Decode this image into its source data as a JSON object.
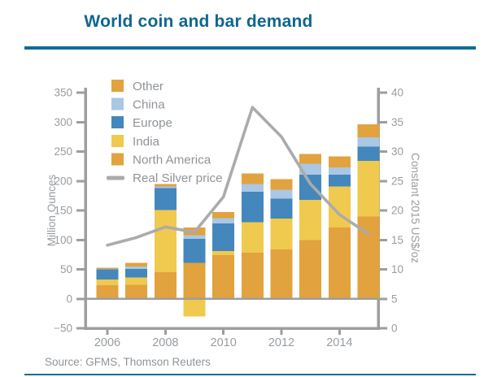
{
  "page": {
    "title": "World coin and bar demand",
    "source": "Source: GFMS, Thomson Reuters"
  },
  "theme": {
    "accent": "#0f6d96",
    "title_color": "#0f6690",
    "axis_gray": "#9c9ea0",
    "tick_label_gray": "#989da1",
    "legend_text_gray": "#8f9499",
    "line_gray": "#ababab",
    "background": "#ffffff"
  },
  "chart_data": {
    "type": "bar",
    "subtype": "stacked-bars-with-price-line",
    "title": "World coin and bar demand",
    "categories": [
      "2006",
      "2007",
      "2008",
      "2009",
      "2010",
      "2011",
      "2012",
      "2013",
      "2014",
      "2015"
    ],
    "stack_order_bottom_to_top": [
      "North America",
      "India",
      "Europe",
      "China",
      "Other"
    ],
    "series": [
      {
        "name": "Other",
        "color": "#e2a23d",
        "values": [
          2,
          6,
          4,
          13,
          10,
          18,
          18,
          17,
          19,
          22
        ]
      },
      {
        "name": "China",
        "color": "#aac7e4",
        "values": [
          1,
          4,
          3,
          6,
          9,
          13,
          15,
          18,
          12,
          16
        ]
      },
      {
        "name": "Europe",
        "color": "#4387bd",
        "values": [
          17,
          15,
          37,
          41,
          47,
          52,
          34,
          43,
          20,
          24
        ]
      },
      {
        "name": "India",
        "color": "#f0c94f",
        "values": [
          10,
          12,
          106,
          -30,
          7,
          52,
          52,
          68,
          70,
          94
        ]
      },
      {
        "name": "North America",
        "color": "#e2a23d",
        "values": [
          23,
          24,
          45,
          61,
          74,
          78,
          84,
          100,
          121,
          140
        ]
      }
    ],
    "line_series": {
      "name": "Real Silver price",
      "color": "#ababab",
      "axis": "right",
      "values": [
        14.1,
        15.4,
        17.2,
        16.3,
        22.3,
        37.5,
        32.5,
        24.5,
        19.3,
        16.0
      ]
    },
    "left_axis": {
      "label": "Million Ounces",
      "min": -50,
      "max": 350,
      "ticks": [
        -50,
        0,
        50,
        100,
        150,
        200,
        250,
        300,
        350
      ],
      "tick_labels": [
        "−50",
        "0",
        "50",
        "100",
        "150",
        "200",
        "250",
        "300",
        "350"
      ]
    },
    "right_axis": {
      "label": "Constant 2015 US$/oz",
      "min": 0,
      "max": 40,
      "ticks": [
        0,
        5,
        10,
        15,
        20,
        25,
        30,
        35,
        40
      ],
      "tick_labels": [
        "0",
        "5",
        "10",
        "15",
        "20",
        "25",
        "30",
        "35",
        "40"
      ]
    },
    "x_axis": {
      "tick_labels": [
        "2006",
        "2008",
        "2010",
        "2012",
        "2014"
      ],
      "tick_category_indices": [
        0,
        2,
        4,
        6,
        8
      ]
    },
    "legend": {
      "position": "top-left-inside",
      "items": [
        "Other",
        "China",
        "Europe",
        "India",
        "North America",
        "Real Silver price"
      ]
    },
    "grid": false
  }
}
